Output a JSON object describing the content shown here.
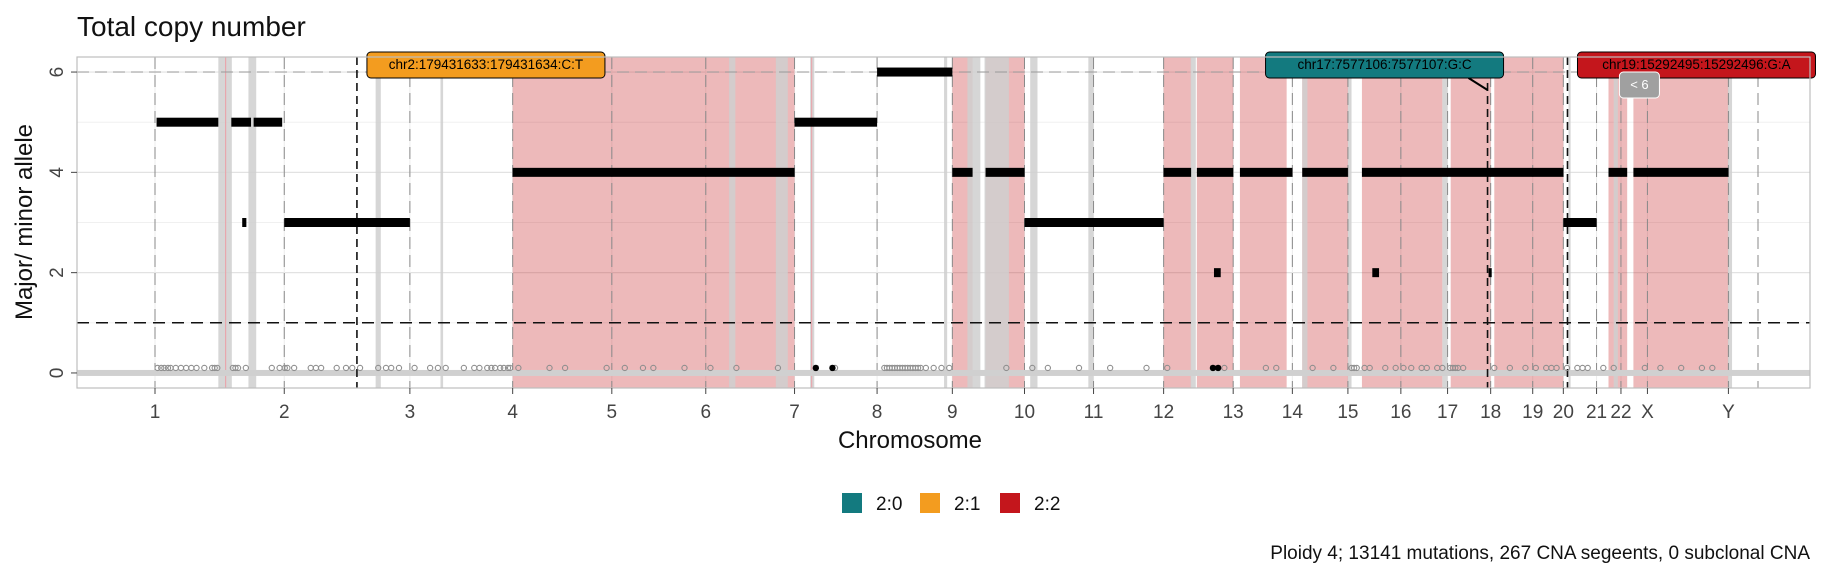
{
  "chart_data": {
    "type": "scatter",
    "title": "Total copy number",
    "xlabel": "Chromosome",
    "ylabel": "Major/ minor allele",
    "caption": "Ploidy 4; 13141 mutations, 267 CNA segeents, 0 subclonal CNA",
    "ylim": [
      -0.3,
      6.3
    ],
    "y_ticks": [
      0,
      2,
      4,
      6
    ],
    "grid": true,
    "legend_position": "bottom",
    "legend": [
      {
        "label": "2:0",
        "color": "#137a7f"
      },
      {
        "label": "2:1",
        "color": "#f39c1f"
      },
      {
        "label": "2:2",
        "color": "#c4161c"
      }
    ],
    "chromosomes": [
      {
        "name": "1",
        "start": 0,
        "end": 249
      },
      {
        "name": "2",
        "start": 249,
        "end": 491
      },
      {
        "name": "3",
        "start": 491,
        "end": 689
      },
      {
        "name": "4",
        "start": 689,
        "end": 880
      },
      {
        "name": "5",
        "start": 880,
        "end": 1061
      },
      {
        "name": "6",
        "start": 1061,
        "end": 1232
      },
      {
        "name": "7",
        "start": 1232,
        "end": 1391
      },
      {
        "name": "8",
        "start": 1391,
        "end": 1536
      },
      {
        "name": "9",
        "start": 1536,
        "end": 1675
      },
      {
        "name": "10",
        "start": 1675,
        "end": 1808
      },
      {
        "name": "11",
        "start": 1808,
        "end": 1943
      },
      {
        "name": "12",
        "start": 1943,
        "end": 2077
      },
      {
        "name": "13",
        "start": 2077,
        "end": 2191
      },
      {
        "name": "14",
        "start": 2191,
        "end": 2298
      },
      {
        "name": "15",
        "start": 2298,
        "end": 2400
      },
      {
        "name": "16",
        "start": 2400,
        "end": 2490
      },
      {
        "name": "17",
        "start": 2490,
        "end": 2573
      },
      {
        "name": "18",
        "start": 2573,
        "end": 2654
      },
      {
        "name": "19",
        "start": 2654,
        "end": 2713
      },
      {
        "name": "20",
        "start": 2713,
        "end": 2777
      },
      {
        "name": "21",
        "start": 2777,
        "end": 2824
      },
      {
        "name": "22",
        "start": 2824,
        "end": 2875
      },
      {
        "name": "X",
        "start": 2875,
        "end": 3031
      },
      {
        "name": "Y",
        "start": 3031,
        "end": 3088
      }
    ],
    "genome_end": 3088,
    "shaded_regions": [
      {
        "start": 689,
        "end": 1232,
        "type": "2:2"
      },
      {
        "start": 1536,
        "end": 1575,
        "type": "2:2"
      },
      {
        "start": 1600,
        "end": 1675,
        "type": "2:2"
      },
      {
        "start": 1943,
        "end": 1996,
        "type": "2:2"
      },
      {
        "start": 2007,
        "end": 2077,
        "type": "2:2"
      },
      {
        "start": 2090,
        "end": 2180,
        "type": "2:2"
      },
      {
        "start": 2210,
        "end": 2298,
        "type": "2:2"
      },
      {
        "start": 2325,
        "end": 2480,
        "type": "2:2"
      },
      {
        "start": 2496,
        "end": 2573,
        "type": "2:2"
      },
      {
        "start": 2580,
        "end": 2713,
        "type": "2:2"
      },
      {
        "start": 2800,
        "end": 2836,
        "type": "2:2"
      },
      {
        "start": 2848,
        "end": 3031,
        "type": "2:2"
      }
    ],
    "segments": [
      {
        "start": 3,
        "end": 122,
        "y": 5
      },
      {
        "start": 147,
        "end": 185,
        "y": 5
      },
      {
        "start": 190,
        "end": 245,
        "y": 5
      },
      {
        "start": 168,
        "end": 176,
        "y": 3
      },
      {
        "start": 249,
        "end": 491,
        "y": 3
      },
      {
        "start": 689,
        "end": 1232,
        "y": 4
      },
      {
        "start": 1232,
        "end": 1391,
        "y": 5
      },
      {
        "start": 1391,
        "end": 1536,
        "y": 6
      },
      {
        "start": 1536,
        "end": 1575,
        "y": 4
      },
      {
        "start": 1600,
        "end": 1675,
        "y": 4
      },
      {
        "start": 1675,
        "end": 1943,
        "y": 3
      },
      {
        "start": 1943,
        "end": 1996,
        "y": 4
      },
      {
        "start": 2007,
        "end": 2077,
        "y": 4
      },
      {
        "start": 2090,
        "end": 2191,
        "y": 4
      },
      {
        "start": 2210,
        "end": 2298,
        "y": 4
      },
      {
        "start": 2325,
        "end": 2713,
        "y": 4
      },
      {
        "start": 2040,
        "end": 2053,
        "y": 2
      },
      {
        "start": 2345,
        "end": 2358,
        "y": 2
      },
      {
        "start": 2569,
        "end": 2575,
        "y": 2
      },
      {
        "start": 2713,
        "end": 2777,
        "y": 3
      },
      {
        "start": 2800,
        "end": 2836,
        "y": 4
      },
      {
        "start": 2848,
        "end": 3031,
        "y": 4
      }
    ],
    "mutation_points_y": 0.1,
    "mutation_points": [
      5,
      12,
      18,
      25,
      30,
      40,
      50,
      60,
      70,
      80,
      95,
      110,
      115,
      120,
      150,
      155,
      160,
      175,
      225,
      240,
      250,
      255,
      268,
      300,
      310,
      320,
      350,
      368,
      380,
      395,
      430,
      445,
      455,
      470,
      500,
      530,
      545,
      560,
      595,
      615,
      625,
      640,
      648,
      655,
      665,
      672,
      680,
      684,
      700,
      760,
      790,
      870,
      905,
      940,
      960,
      1020,
      1070,
      1120,
      1200,
      1310,
      1405,
      1410,
      1415,
      1420,
      1425,
      1430,
      1435,
      1440,
      1445,
      1450,
      1455,
      1460,
      1465,
      1470,
      1475,
      1485,
      1500,
      1515,
      1530,
      1640,
      1690,
      1720,
      1780,
      1840,
      1910,
      1950,
      2060,
      2140,
      2160,
      2230,
      2270,
      2305,
      2310,
      2315,
      2330,
      2340,
      2370,
      2390,
      2405,
      2420,
      2440,
      2450,
      2470,
      2480,
      2495,
      2500,
      2505,
      2510,
      2520,
      2580,
      2610,
      2640,
      2660,
      2680,
      2690,
      2700,
      2720,
      2740,
      2750,
      2760,
      2790,
      2810,
      2870,
      2900,
      2940,
      2980,
      3000
    ],
    "driver_points": [
      1273,
      1305,
      2038,
      2048
    ],
    "gray_bands": [
      122,
      148,
      180,
      195,
      425,
      435,
      550,
      555,
      1106,
      1118,
      1196,
      1219,
      1262,
      1270,
      1520,
      1526,
      1565,
      1590,
      1598,
      1645,
      1686,
      1700,
      1798,
      1808,
      1995,
      2005,
      2210,
      2220,
      2298,
      2305,
      2480,
      2490,
      2723,
      2727,
      2810,
      2818,
      3030,
      3038
    ],
    "pink_lines": [
      136,
      1265
    ],
    "dashed_hline_y": 1,
    "dashed_vlines": [
      389,
      2567,
      2721
    ],
    "annotations": [
      {
        "label": "chr2:179431633:179431634:C:T",
        "x": 389,
        "y": 6,
        "type": "2:1"
      },
      {
        "label": "chr17:7577106:7577107:G:C",
        "x": 2567,
        "y": 6,
        "type": "2:0"
      },
      {
        "label": "chr19:15292495:15292496:G:A",
        "x": 2721,
        "y": 6,
        "type": "2:2"
      }
    ],
    "small_label": "< 6"
  }
}
